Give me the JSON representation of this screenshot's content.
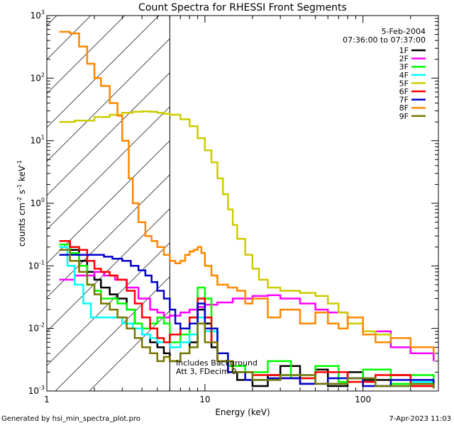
{
  "chart_data": {
    "type": "line",
    "title": "Count Spectra for RHESSI Front Segments",
    "xlabel": "Energy (keV)",
    "ylabel_parts": {
      "base": "counts cm",
      "e1": "-2",
      "mid": " s",
      "e2": "-1",
      "tail": " keV",
      "e3": "-1"
    },
    "xscale": "log",
    "yscale": "log",
    "xlim": [
      1,
      300
    ],
    "ylim": [
      0.001,
      1000
    ],
    "x_ticks": [
      {
        "v": 1,
        "label": "1"
      },
      {
        "v": 10,
        "label": "10"
      },
      {
        "v": 100,
        "label": "100"
      }
    ],
    "y_ticks": [
      {
        "v": 0.001,
        "base": "10",
        "exp": "-3"
      },
      {
        "v": 0.01,
        "base": "10",
        "exp": "-2"
      },
      {
        "v": 0.1,
        "base": "10",
        "exp": "-1"
      },
      {
        "v": 1,
        "base": "10",
        "exp": "0"
      },
      {
        "v": 10,
        "base": "10",
        "exp": "1"
      },
      {
        "v": 100,
        "base": "10",
        "exp": "2"
      },
      {
        "v": 1000,
        "base": "10",
        "exp": "3"
      }
    ],
    "date": "5-Feb-2004",
    "time_range": "07:36:00 to 07:37:00",
    "annotation_line1": "Includes Background",
    "annotation_line2": "Att 3, FDecim 0",
    "hatch_region_keV": [
      1,
      6
    ],
    "series": [
      {
        "name": "1F",
        "color": "#000000",
        "points": [
          [
            1.2,
            0.25
          ],
          [
            1.4,
            0.18
          ],
          [
            1.6,
            0.12
          ],
          [
            1.8,
            0.08
          ],
          [
            2.0,
            0.06
          ],
          [
            2.2,
            0.045
          ],
          [
            2.5,
            0.035
          ],
          [
            2.8,
            0.03
          ],
          [
            3.2,
            0.02
          ],
          [
            3.6,
            0.012
          ],
          [
            4.0,
            0.008
          ],
          [
            4.5,
            0.006
          ],
          [
            5.0,
            0.005
          ],
          [
            5.5,
            0.004
          ],
          [
            6.0,
            0.003
          ],
          [
            7,
            0.004
          ],
          [
            8,
            0.006
          ],
          [
            9,
            0.02
          ],
          [
            10,
            0.012
          ],
          [
            11,
            0.005
          ],
          [
            12,
            0.003
          ],
          [
            14,
            0.002
          ],
          [
            16,
            0.0015
          ],
          [
            20,
            0.0012
          ],
          [
            25,
            0.0018
          ],
          [
            30,
            0.0025
          ],
          [
            40,
            0.0013
          ],
          [
            50,
            0.0022
          ],
          [
            60,
            0.0012
          ],
          [
            80,
            0.002
          ],
          [
            100,
            0.0015
          ],
          [
            150,
            0.0018
          ],
          [
            200,
            0.0012
          ],
          [
            280,
            0.0011
          ]
        ]
      },
      {
        "name": "2F",
        "color": "#ff00ff",
        "points": [
          [
            1.2,
            0.06
          ],
          [
            1.3,
            0.06
          ],
          [
            1.5,
            0.07
          ],
          [
            1.7,
            0.07
          ],
          [
            2.0,
            0.08
          ],
          [
            2.3,
            0.07
          ],
          [
            2.7,
            0.06
          ],
          [
            3.2,
            0.045
          ],
          [
            3.8,
            0.03
          ],
          [
            4.5,
            0.02
          ],
          [
            5.0,
            0.018
          ],
          [
            5.5,
            0.015
          ],
          [
            6.0,
            0.016
          ],
          [
            7,
            0.018
          ],
          [
            8,
            0.02
          ],
          [
            9,
            0.022
          ],
          [
            10,
            0.024
          ],
          [
            12,
            0.026
          ],
          [
            15,
            0.03
          ],
          [
            20,
            0.033
          ],
          [
            25,
            0.034
          ],
          [
            30,
            0.03
          ],
          [
            40,
            0.025
          ],
          [
            50,
            0.02
          ],
          [
            60,
            0.018
          ],
          [
            80,
            0.012
          ],
          [
            100,
            0.009
          ],
          [
            150,
            0.005
          ],
          [
            200,
            0.004
          ],
          [
            280,
            0.003
          ]
        ]
      },
      {
        "name": "3F",
        "color": "#00ff00",
        "points": [
          [
            1.2,
            0.22
          ],
          [
            1.4,
            0.16
          ],
          [
            1.6,
            0.1
          ],
          [
            1.8,
            0.05
          ],
          [
            2.0,
            0.04
          ],
          [
            2.2,
            0.03
          ],
          [
            2.5,
            0.03
          ],
          [
            2.8,
            0.025
          ],
          [
            3.2,
            0.02
          ],
          [
            3.6,
            0.012
          ],
          [
            4.0,
            0.01
          ],
          [
            4.5,
            0.012
          ],
          [
            5.0,
            0.015
          ],
          [
            5.5,
            0.012
          ],
          [
            6.0,
            0.006
          ],
          [
            7,
            0.008
          ],
          [
            8,
            0.015
          ],
          [
            9,
            0.045
          ],
          [
            10,
            0.03
          ],
          [
            11,
            0.01
          ],
          [
            12,
            0.004
          ],
          [
            14,
            0.0025
          ],
          [
            18,
            0.002
          ],
          [
            25,
            0.003
          ],
          [
            35,
            0.0016
          ],
          [
            50,
            0.0025
          ],
          [
            70,
            0.0014
          ],
          [
            100,
            0.0022
          ],
          [
            150,
            0.0013
          ],
          [
            200,
            0.0018
          ],
          [
            280,
            0.0011
          ]
        ]
      },
      {
        "name": "4F",
        "color": "#00ffff",
        "points": [
          [
            1.2,
            0.2
          ],
          [
            1.35,
            0.1
          ],
          [
            1.5,
            0.05
          ],
          [
            1.7,
            0.025
          ],
          [
            1.9,
            0.015
          ],
          [
            2.2,
            0.015
          ],
          [
            2.6,
            0.015
          ],
          [
            3.0,
            0.012
          ],
          [
            3.5,
            0.01
          ],
          [
            4.0,
            0.008
          ],
          [
            4.5,
            0.007
          ],
          [
            5.0,
            0.006
          ],
          [
            5.5,
            0.006
          ],
          [
            6.0,
            0.005
          ],
          [
            7,
            0.006
          ],
          [
            8,
            0.008
          ],
          [
            9,
            0.015
          ],
          [
            10,
            0.009
          ],
          [
            12,
            0.003
          ],
          [
            15,
            0.002
          ],
          [
            20,
            0.0015
          ],
          [
            30,
            0.0018
          ],
          [
            50,
            0.0013
          ],
          [
            80,
            0.0016
          ],
          [
            120,
            0.0012
          ],
          [
            200,
            0.0014
          ],
          [
            280,
            0.0011
          ]
        ]
      },
      {
        "name": "5F",
        "color": "#cccc00",
        "points": [
          [
            1.2,
            20
          ],
          [
            1.5,
            21
          ],
          [
            2.0,
            24
          ],
          [
            2.5,
            26
          ],
          [
            3.0,
            28
          ],
          [
            3.5,
            29
          ],
          [
            4.0,
            29.5
          ],
          [
            4.5,
            29
          ],
          [
            5.0,
            28
          ],
          [
            5.5,
            27
          ],
          [
            6.0,
            26
          ],
          [
            7,
            22
          ],
          [
            8,
            17
          ],
          [
            9,
            11
          ],
          [
            10,
            7
          ],
          [
            11,
            4.5
          ],
          [
            12,
            2.5
          ],
          [
            13,
            1.4
          ],
          [
            14,
            0.8
          ],
          [
            15,
            0.45
          ],
          [
            16,
            0.27
          ],
          [
            18,
            0.15
          ],
          [
            20,
            0.09
          ],
          [
            22,
            0.06
          ],
          [
            25,
            0.045
          ],
          [
            30,
            0.04
          ],
          [
            35,
            0.04
          ],
          [
            40,
            0.037
          ],
          [
            50,
            0.033
          ],
          [
            60,
            0.025
          ],
          [
            70,
            0.018
          ],
          [
            80,
            0.012
          ],
          [
            100,
            0.009
          ],
          [
            120,
            0.008
          ],
          [
            150,
            0.007
          ],
          [
            200,
            0.005
          ],
          [
            280,
            0.004
          ]
        ]
      },
      {
        "name": "6F",
        "color": "#ff0000",
        "points": [
          [
            1.2,
            0.25
          ],
          [
            1.4,
            0.2
          ],
          [
            1.6,
            0.18
          ],
          [
            1.8,
            0.12
          ],
          [
            2.0,
            0.09
          ],
          [
            2.2,
            0.08
          ],
          [
            2.5,
            0.07
          ],
          [
            2.8,
            0.06
          ],
          [
            3.2,
            0.04
          ],
          [
            3.6,
            0.025
          ],
          [
            4.0,
            0.015
          ],
          [
            4.5,
            0.01
          ],
          [
            5.0,
            0.007
          ],
          [
            5.5,
            0.006
          ],
          [
            6.0,
            0.008
          ],
          [
            7,
            0.01
          ],
          [
            8,
            0.015
          ],
          [
            9,
            0.03
          ],
          [
            10,
            0.015
          ],
          [
            11,
            0.006
          ],
          [
            12,
            0.003
          ],
          [
            15,
            0.002
          ],
          [
            20,
            0.0018
          ],
          [
            30,
            0.0016
          ],
          [
            50,
            0.002
          ],
          [
            80,
            0.0014
          ],
          [
            120,
            0.0018
          ],
          [
            200,
            0.0012
          ],
          [
            280,
            0.0011
          ]
        ]
      },
      {
        "name": "7F",
        "color": "#0000cc",
        "points": [
          [
            1.2,
            0.15
          ],
          [
            1.4,
            0.15
          ],
          [
            1.6,
            0.15
          ],
          [
            1.8,
            0.15
          ],
          [
            2.0,
            0.15
          ],
          [
            2.3,
            0.14
          ],
          [
            2.6,
            0.13
          ],
          [
            3.0,
            0.12
          ],
          [
            3.4,
            0.1
          ],
          [
            3.8,
            0.085
          ],
          [
            4.2,
            0.07
          ],
          [
            4.6,
            0.055
          ],
          [
            5.0,
            0.04
          ],
          [
            5.5,
            0.03
          ],
          [
            6.0,
            0.02
          ],
          [
            6.5,
            0.012
          ],
          [
            7,
            0.01
          ],
          [
            8,
            0.012
          ],
          [
            9,
            0.025
          ],
          [
            10,
            0.01
          ],
          [
            12,
            0.004
          ],
          [
            14,
            0.002
          ],
          [
            18,
            0.0015
          ],
          [
            25,
            0.0016
          ],
          [
            40,
            0.0013
          ],
          [
            60,
            0.0016
          ],
          [
            100,
            0.0012
          ],
          [
            150,
            0.0015
          ],
          [
            280,
            0.0011
          ]
        ]
      },
      {
        "name": "8F",
        "color": "#ff8800",
        "points": [
          [
            1.2,
            550
          ],
          [
            1.3,
            550
          ],
          [
            1.4,
            520
          ],
          [
            1.6,
            320
          ],
          [
            1.8,
            170
          ],
          [
            2.0,
            100
          ],
          [
            2.2,
            75
          ],
          [
            2.5,
            40
          ],
          [
            2.8,
            25
          ],
          [
            3.0,
            10
          ],
          [
            3.3,
            2.5
          ],
          [
            3.5,
            1.0
          ],
          [
            3.8,
            0.5
          ],
          [
            4.2,
            0.3
          ],
          [
            4.6,
            0.25
          ],
          [
            5.0,
            0.2
          ],
          [
            5.5,
            0.15
          ],
          [
            6.0,
            0.12
          ],
          [
            6.5,
            0.11
          ],
          [
            7,
            0.12
          ],
          [
            7.5,
            0.15
          ],
          [
            8,
            0.17
          ],
          [
            8.5,
            0.18
          ],
          [
            9,
            0.2
          ],
          [
            9.5,
            0.16
          ],
          [
            10,
            0.1
          ],
          [
            11,
            0.07
          ],
          [
            12,
            0.05
          ],
          [
            14,
            0.045
          ],
          [
            16,
            0.04
          ],
          [
            18,
            0.025
          ],
          [
            20,
            0.03
          ],
          [
            25,
            0.015
          ],
          [
            30,
            0.02
          ],
          [
            35,
            0.02
          ],
          [
            40,
            0.012
          ],
          [
            50,
            0.018
          ],
          [
            60,
            0.012
          ],
          [
            70,
            0.01
          ],
          [
            80,
            0.015
          ],
          [
            100,
            0.008
          ],
          [
            120,
            0.006
          ],
          [
            150,
            0.007
          ],
          [
            200,
            0.005
          ],
          [
            280,
            0.004
          ]
        ]
      },
      {
        "name": "9F",
        "color": "#777700",
        "points": [
          [
            1.2,
            0.18
          ],
          [
            1.4,
            0.12
          ],
          [
            1.6,
            0.08
          ],
          [
            1.8,
            0.05
          ],
          [
            2.0,
            0.035
          ],
          [
            2.2,
            0.025
          ],
          [
            2.5,
            0.02
          ],
          [
            2.8,
            0.015
          ],
          [
            3.2,
            0.01
          ],
          [
            3.6,
            0.007
          ],
          [
            4.0,
            0.005
          ],
          [
            4.5,
            0.004
          ],
          [
            5.0,
            0.003
          ],
          [
            5.5,
            0.0035
          ],
          [
            6.0,
            0.003
          ],
          [
            7,
            0.004
          ],
          [
            8,
            0.005
          ],
          [
            9,
            0.012
          ],
          [
            10,
            0.006
          ],
          [
            12,
            0.003
          ],
          [
            15,
            0.002
          ],
          [
            20,
            0.0015
          ],
          [
            30,
            0.0018
          ],
          [
            50,
            0.0013
          ],
          [
            80,
            0.0016
          ],
          [
            120,
            0.0012
          ],
          [
            200,
            0.0013
          ],
          [
            280,
            0.0011
          ]
        ]
      }
    ]
  },
  "footer": {
    "left": "Generated by hsi_min_spectra_plot.pro",
    "right": "7-Apr-2023 11:03"
  }
}
